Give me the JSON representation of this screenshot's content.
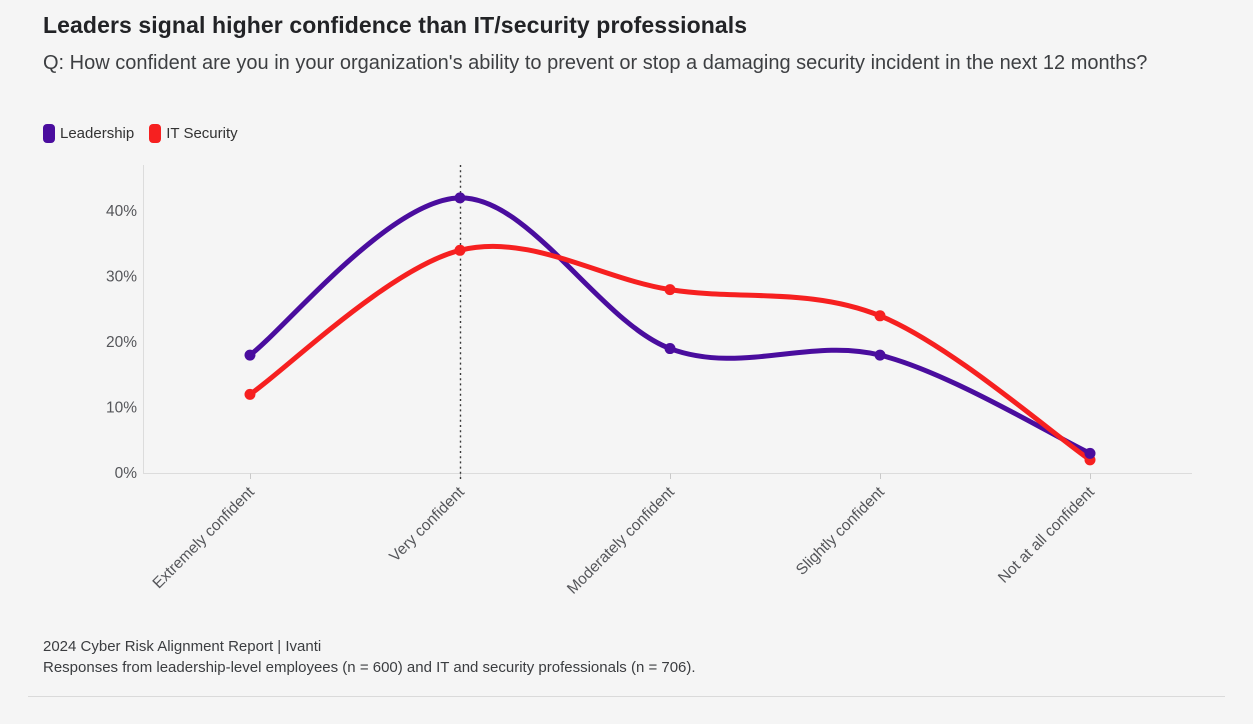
{
  "title": "Leaders signal higher confidence than IT/security professionals",
  "subtitle": "Q: How confident are you in your organization's ability to prevent or stop a damaging security incident in the next 12 months?",
  "footer": {
    "line1": "2024 Cyber Risk Alignment Report | Ivanti",
    "line2": "Responses from leadership-level employees (n = 600) and IT and security professionals (n = 706)."
  },
  "colors": {
    "leadership": "#4a0d9e",
    "it_security": "#f62020",
    "axis": "#dcdcdc",
    "tick": "#c9c9c9",
    "axis_text": "#55565a",
    "annotation": "#3a3a3a",
    "background": "#f5f5f5"
  },
  "chart_data": {
    "type": "line",
    "title": "Leaders signal higher confidence than IT/security professionals",
    "categories": [
      "Extremely confident",
      "Very confident",
      "Moderately confident",
      "Slightly confident",
      "Not at all confident"
    ],
    "series": [
      {
        "name": "Leadership",
        "color": "#4a0d9e",
        "values": [
          18,
          42,
          19,
          18,
          3
        ]
      },
      {
        "name": "IT Security",
        "color": "#f62020",
        "values": [
          12,
          34,
          28,
          24,
          2
        ]
      }
    ],
    "xlabel": "",
    "ylabel": "",
    "ylim": [
      0,
      46
    ],
    "yticks": [
      0,
      10,
      20,
      30,
      40
    ],
    "ytick_suffix": "%",
    "grid": false,
    "legend_position": "top-left",
    "annotation": {
      "type": "dotted-vertical-line",
      "category": "Very confident"
    }
  }
}
